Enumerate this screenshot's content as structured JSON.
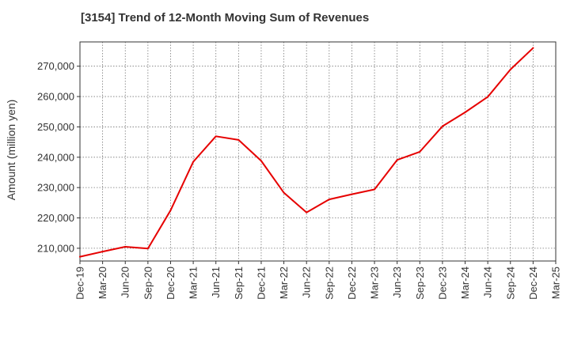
{
  "chart_data": {
    "type": "line",
    "title": "[3154]  Trend of 12-Month Moving Sum of Revenues",
    "xlabel": "",
    "ylabel": "Amount (million yen)",
    "x_tick_labels": [
      "Dec-19",
      "Mar-20",
      "Jun-20",
      "Sep-20",
      "Dec-20",
      "Mar-21",
      "Jun-21",
      "Sep-21",
      "Dec-21",
      "Mar-22",
      "Jun-22",
      "Sep-22",
      "Dec-22",
      "Mar-23",
      "Jun-23",
      "Sep-23",
      "Dec-23",
      "Mar-24",
      "Jun-24",
      "Sep-24",
      "Dec-24",
      "Mar-25"
    ],
    "y_tick_labels": [
      "210,000",
      "220,000",
      "230,000",
      "240,000",
      "250,000",
      "260,000",
      "270,000"
    ],
    "y_ticks": [
      210000,
      220000,
      230000,
      240000,
      250000,
      260000,
      270000
    ],
    "ylim": [
      205800,
      278000
    ],
    "grid": true,
    "line_color": "#e60000",
    "series": [
      {
        "x": [
          "Dec-19",
          "Mar-20",
          "Jun-20",
          "Sep-20",
          "Dec-20",
          "Mar-21",
          "Jun-21",
          "Sep-21",
          "Dec-21",
          "Mar-22",
          "Jun-22",
          "Sep-22",
          "Dec-22",
          "Mar-23",
          "Jun-23",
          "Sep-23",
          "Dec-23",
          "Mar-24",
          "Jun-24",
          "Sep-24",
          "Dec-24"
        ],
        "values": [
          207200,
          208900,
          210500,
          209900,
          222500,
          238500,
          246900,
          245700,
          238800,
          228300,
          221800,
          226100,
          227800,
          229400,
          239100,
          241800,
          250200,
          254800,
          259900,
          268900,
          276000
        ]
      }
    ]
  }
}
